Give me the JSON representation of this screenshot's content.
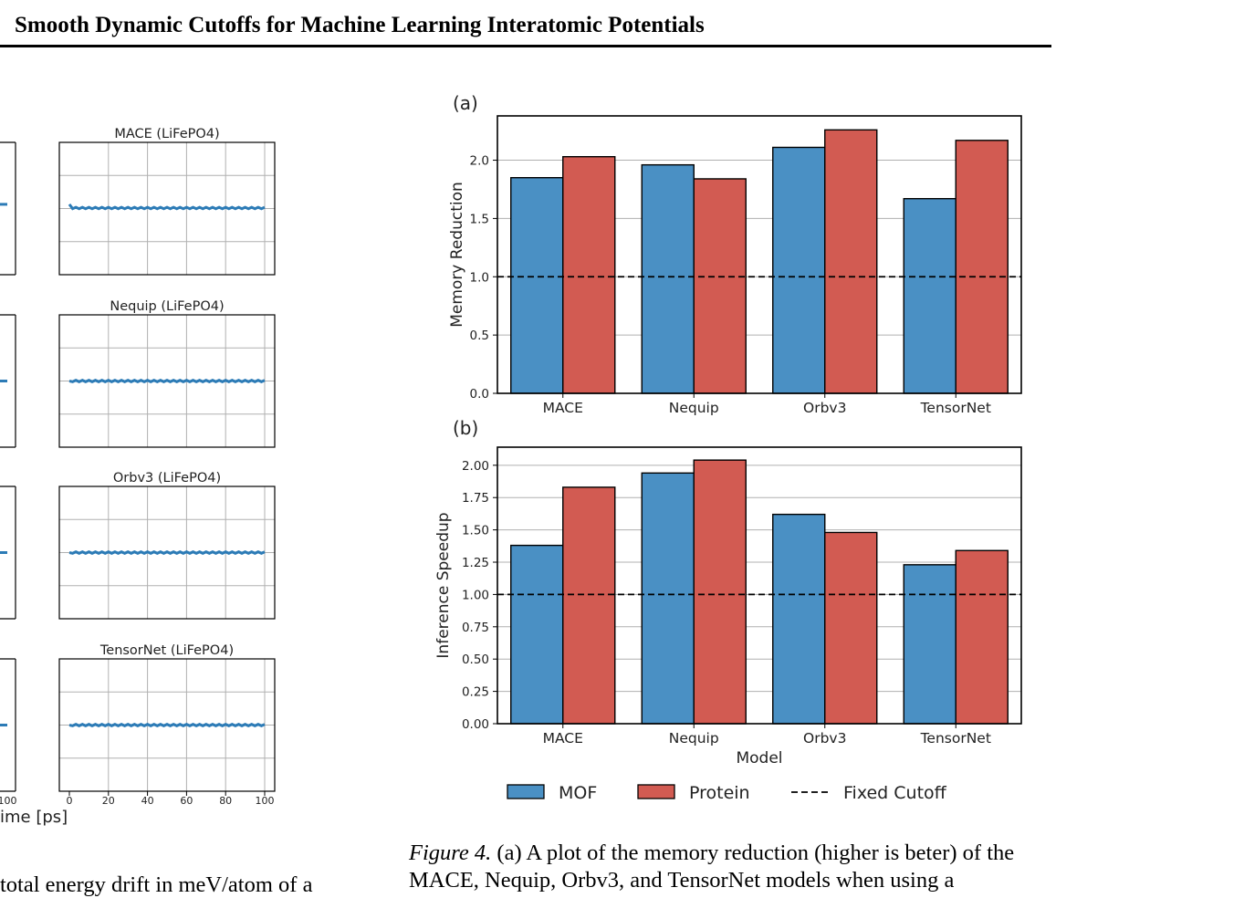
{
  "header": {
    "title": "Smooth Dynamic Cutoffs for Machine Learning Interatomic Potentials"
  },
  "left_figure": {
    "panels": [
      {
        "title": "MACE (LiFePO4)",
        "level": 0.42
      },
      {
        "title": "Nequip (LiFePO4)",
        "level": 0.5
      },
      {
        "title": "Orbv3 (LiFePO4)",
        "level": 0.5
      },
      {
        "title": "TensorNet (LiFePO4)",
        "level": 0.5
      }
    ],
    "x_ticks": [
      "0",
      "20",
      "40",
      "60",
      "80",
      "100"
    ],
    "partial_tick": "100",
    "xlabel_partial": "ime [ps]"
  },
  "right_figure": {
    "colors": {
      "mof": "#4a90c4",
      "protein": "#d25b52"
    },
    "legend": {
      "mof": "MOF",
      "protein": "Protein",
      "fixed": "Fixed Cutoff"
    },
    "x_title": "Model"
  },
  "chart_data": [
    {
      "type": "bar",
      "panel_label": "(a)",
      "categories": [
        "MACE",
        "Nequip",
        "Orbv3",
        "TensorNet"
      ],
      "series": [
        {
          "name": "MOF",
          "values": [
            1.85,
            1.96,
            2.11,
            1.67
          ]
        },
        {
          "name": "Protein",
          "values": [
            2.03,
            1.84,
            2.26,
            2.17
          ]
        }
      ],
      "ylabel": "Memory Reduction",
      "ylim": [
        0,
        2.38
      ],
      "yticks": [
        "0.0",
        "0.5",
        "1.0",
        "1.5",
        "2.0"
      ],
      "reference_line": 1.0,
      "grid": true
    },
    {
      "type": "bar",
      "panel_label": "(b)",
      "categories": [
        "MACE",
        "Nequip",
        "Orbv3",
        "TensorNet"
      ],
      "series": [
        {
          "name": "MOF",
          "values": [
            1.38,
            1.94,
            1.62,
            1.23
          ]
        },
        {
          "name": "Protein",
          "values": [
            1.83,
            2.04,
            1.48,
            1.34
          ]
        }
      ],
      "ylabel": "Inference Speedup",
      "xlabel": "Model",
      "ylim": [
        0,
        2.14
      ],
      "yticks": [
        "0.00",
        "0.25",
        "0.50",
        "0.75",
        "1.00",
        "1.25",
        "1.50",
        "1.75",
        "2.00"
      ],
      "reference_line": 1.0,
      "grid": true
    }
  ],
  "caption": {
    "label": "Figure 4.",
    "text": "(a) A plot of the memory reduction (higher is beter) of the MACE, Nequip, Orbv3, and TensorNet models when using a"
  },
  "left_text": "total energy drift in meV/atom of a"
}
